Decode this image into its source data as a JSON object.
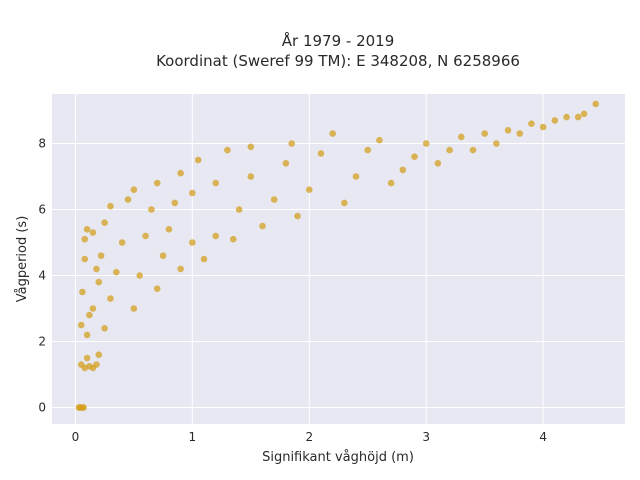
{
  "chart_data": {
    "type": "scatter",
    "title_lines": [
      "År 1979 - 2019",
      "Koordinat (Sweref 99 TM): E 348208, N 6258966"
    ],
    "xlabel": "Signifikant våghöjd (m)",
    "ylabel": "Vågperiod (s)",
    "xlim": [
      -0.2,
      4.7
    ],
    "ylim": [
      -0.5,
      9.5
    ],
    "xticks": [
      0,
      1,
      2,
      3,
      4
    ],
    "yticks": [
      0,
      2,
      4,
      6,
      8
    ],
    "x_tick_labels": [
      "0",
      "1",
      "2",
      "3",
      "4"
    ],
    "y_tick_labels": [
      "0",
      "2",
      "4",
      "6",
      "8"
    ],
    "grid": true,
    "legend": "none",
    "colors": {
      "marker": "#d4a020",
      "plot_background": "#e8e8f2",
      "grid": "#ffffff"
    },
    "points": [
      [
        0.03,
        0.0
      ],
      [
        0.05,
        0.0
      ],
      [
        0.07,
        0.0
      ],
      [
        0.04,
        0.0
      ],
      [
        0.06,
        0.0
      ],
      [
        0.05,
        1.3
      ],
      [
        0.08,
        1.2
      ],
      [
        0.1,
        1.5
      ],
      [
        0.12,
        1.25
      ],
      [
        0.15,
        1.2
      ],
      [
        0.18,
        1.3
      ],
      [
        0.05,
        2.5
      ],
      [
        0.06,
        3.5
      ],
      [
        0.08,
        4.5
      ],
      [
        0.08,
        5.1
      ],
      [
        0.1,
        5.4
      ],
      [
        0.15,
        5.3
      ],
      [
        0.1,
        2.2
      ],
      [
        0.15,
        3.0
      ],
      [
        0.2,
        3.8
      ],
      [
        0.22,
        4.6
      ],
      [
        0.25,
        5.6
      ],
      [
        0.3,
        6.1
      ],
      [
        0.12,
        2.8
      ],
      [
        0.18,
        4.2
      ],
      [
        0.2,
        1.6
      ],
      [
        0.25,
        2.4
      ],
      [
        0.3,
        3.3
      ],
      [
        0.35,
        4.1
      ],
      [
        0.4,
        5.0
      ],
      [
        0.45,
        6.3
      ],
      [
        0.5,
        6.6
      ],
      [
        0.5,
        3.0
      ],
      [
        0.55,
        4.0
      ],
      [
        0.6,
        5.2
      ],
      [
        0.65,
        6.0
      ],
      [
        0.7,
        6.8
      ],
      [
        0.7,
        3.6
      ],
      [
        0.75,
        4.6
      ],
      [
        0.8,
        5.4
      ],
      [
        0.85,
        6.2
      ],
      [
        0.9,
        7.1
      ],
      [
        0.9,
        4.2
      ],
      [
        1.0,
        5.0
      ],
      [
        1.0,
        6.5
      ],
      [
        1.05,
        7.5
      ],
      [
        1.1,
        4.5
      ],
      [
        1.2,
        5.2
      ],
      [
        1.2,
        6.8
      ],
      [
        1.3,
        7.8
      ],
      [
        1.35,
        5.1
      ],
      [
        1.4,
        6.0
      ],
      [
        1.5,
        7.0
      ],
      [
        1.5,
        7.9
      ],
      [
        1.6,
        5.5
      ],
      [
        1.7,
        6.3
      ],
      [
        1.8,
        7.4
      ],
      [
        1.85,
        8.0
      ],
      [
        1.9,
        5.8
      ],
      [
        2.0,
        6.6
      ],
      [
        2.1,
        7.7
      ],
      [
        2.2,
        8.3
      ],
      [
        2.3,
        6.2
      ],
      [
        2.4,
        7.0
      ],
      [
        2.5,
        7.8
      ],
      [
        2.6,
        8.1
      ],
      [
        2.7,
        6.8
      ],
      [
        2.8,
        7.2
      ],
      [
        2.9,
        7.6
      ],
      [
        3.0,
        8.0
      ],
      [
        3.1,
        7.4
      ],
      [
        3.2,
        7.8
      ],
      [
        3.3,
        8.2
      ],
      [
        3.4,
        7.8
      ],
      [
        3.5,
        8.3
      ],
      [
        3.6,
        8.0
      ],
      [
        3.7,
        8.4
      ],
      [
        3.8,
        8.3
      ],
      [
        3.9,
        8.6
      ],
      [
        4.0,
        8.5
      ],
      [
        4.1,
        8.7
      ],
      [
        4.2,
        8.8
      ],
      [
        4.3,
        8.8
      ],
      [
        4.35,
        8.9
      ],
      [
        4.45,
        9.2
      ]
    ]
  }
}
